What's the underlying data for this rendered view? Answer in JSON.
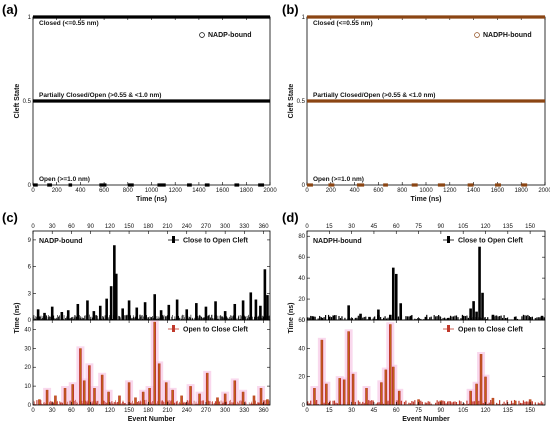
{
  "chart_data": [
    {
      "panel": "(a)",
      "type": "scatter",
      "legend": "NADP-bound",
      "xlabel": "Time (ns)",
      "ylabel": "Cleft  State",
      "xlim": [
        0,
        2000
      ],
      "ylim": [
        0,
        1
      ],
      "xticks": [
        "0",
        "200",
        "400",
        "600",
        "800",
        "1000",
        "1200",
        "1400",
        "1600",
        "1800",
        "2000"
      ],
      "yticks": [
        "0",
        "0.5",
        "1"
      ],
      "annotations": [
        "Closed (<=0.55 nm)",
        "Partially Closed/Open (>0.55 & <1.0 nm)",
        "Open (>=1.0 nm)"
      ],
      "states": [
        {
          "y": 1,
          "segments": [
            [
              0,
              2000
            ]
          ]
        },
        {
          "y": 0.5,
          "segments": [
            [
              0,
              2000
            ]
          ]
        },
        {
          "y": 0,
          "segments": [
            [
              0,
              40
            ],
            [
              120,
              160
            ],
            [
              300,
              330
            ],
            [
              560,
              620
            ],
            [
              800,
              850
            ],
            [
              1050,
              1120
            ],
            [
              1300,
              1340
            ],
            [
              1450,
              1490
            ],
            [
              1700,
              1740
            ],
            [
              1900,
              1950
            ]
          ]
        }
      ],
      "color": "#000000"
    },
    {
      "panel": "(b)",
      "type": "scatter",
      "legend": "NADPH-bound",
      "xlabel": "Time (ns)",
      "ylabel": "Cleft  State",
      "xlim": [
        0,
        2000
      ],
      "ylim": [
        0,
        1
      ],
      "xticks": [
        "0",
        "200",
        "400",
        "600",
        "800",
        "1000",
        "1200",
        "1400",
        "1600",
        "1800",
        "2000"
      ],
      "yticks": [
        "0",
        "0.5",
        "1"
      ],
      "annotations": [
        "Closed (<=0.55 nm)",
        "Partially Closed/Open (>0.55 & <1.0 nm)",
        "Open (>=1.0 nm)"
      ],
      "states": [
        {
          "y": 1,
          "segments": [
            [
              0,
              2000
            ]
          ]
        },
        {
          "y": 0.5,
          "segments": [
            [
              0,
              2000
            ]
          ]
        },
        {
          "y": 0,
          "segments": [
            [
              0,
              50
            ],
            [
              180,
              230
            ],
            [
              420,
              480
            ],
            [
              640,
              680
            ],
            [
              880,
              930
            ],
            [
              1100,
              1160
            ],
            [
              1350,
              1400
            ],
            [
              1580,
              1630
            ],
            [
              1800,
              1850
            ]
          ]
        }
      ],
      "color": "#8B4513"
    },
    {
      "panel": "(c)",
      "type": "bar",
      "header": "NADP-bound",
      "xlabel": "Event Number",
      "ylabel": "Time (ns)",
      "xlim": [
        0,
        370
      ],
      "xticks": [
        "0",
        "30",
        "60",
        "90",
        "120",
        "150",
        "180",
        "210",
        "240",
        "270",
        "300",
        "330",
        "360"
      ],
      "top": {
        "legend": "Close to Open Cleft",
        "ylim": [
          0,
          10
        ],
        "yticks": [
          "0",
          "3",
          "6",
          "9"
        ],
        "color": "#000000",
        "peaks": [
          [
            8,
            1.2
          ],
          [
            18,
            0.8
          ],
          [
            30,
            1.5
          ],
          [
            45,
            0.9
          ],
          [
            55,
            1.1
          ],
          [
            70,
            1.8
          ],
          [
            85,
            2.2
          ],
          [
            95,
            1.0
          ],
          [
            105,
            1.6
          ],
          [
            115,
            2.4
          ],
          [
            122,
            3.8
          ],
          [
            127,
            8.4
          ],
          [
            130,
            5.2
          ],
          [
            140,
            1.3
          ],
          [
            150,
            2.2
          ],
          [
            162,
            1.4
          ],
          [
            175,
            2.0
          ],
          [
            190,
            2.9
          ],
          [
            200,
            1.1
          ],
          [
            212,
            1.7
          ],
          [
            225,
            2.3
          ],
          [
            240,
            1.2
          ],
          [
            255,
            1.9
          ],
          [
            270,
            1.5
          ],
          [
            285,
            2.1
          ],
          [
            300,
            1.0
          ],
          [
            315,
            1.8
          ],
          [
            328,
            2.2
          ],
          [
            340,
            3.1
          ],
          [
            348,
            2.3
          ],
          [
            355,
            1.6
          ],
          [
            362,
            5.7
          ],
          [
            366,
            2.8
          ]
        ]
      },
      "bottom": {
        "legend": "Open to Close Cleft",
        "ylim": [
          0,
          45
        ],
        "yticks": [
          "0",
          "10",
          "20",
          "30",
          "40"
        ],
        "color": "#C0392B",
        "peaks": [
          [
            10,
            3
          ],
          [
            22,
            8
          ],
          [
            35,
            5
          ],
          [
            50,
            9
          ],
          [
            62,
            11
          ],
          [
            74,
            30
          ],
          [
            80,
            13
          ],
          [
            88,
            21
          ],
          [
            96,
            9
          ],
          [
            108,
            16
          ],
          [
            118,
            7
          ],
          [
            135,
            5
          ],
          [
            150,
            12
          ],
          [
            160,
            4
          ],
          [
            172,
            7
          ],
          [
            182,
            9
          ],
          [
            190,
            44
          ],
          [
            197,
            22
          ],
          [
            208,
            12
          ],
          [
            218,
            8
          ],
          [
            232,
            5
          ],
          [
            246,
            10
          ],
          [
            260,
            6
          ],
          [
            272,
            17
          ],
          [
            288,
            4
          ],
          [
            300,
            6
          ],
          [
            315,
            13
          ],
          [
            328,
            7
          ],
          [
            345,
            5
          ],
          [
            356,
            9
          ],
          [
            366,
            3
          ]
        ]
      }
    },
    {
      "panel": "(d)",
      "type": "bar",
      "header": "NADPH-bound",
      "xlabel": "Event Number",
      "ylabel": "Time (ns)",
      "xlim": [
        0,
        160
      ],
      "xticks": [
        "0",
        "15",
        "30",
        "45",
        "60",
        "75",
        "90",
        "105",
        "120",
        "135",
        "150"
      ],
      "top": {
        "legend": "Close to Open Cleft",
        "ylim": [
          0,
          85
        ],
        "yticks": [
          "0",
          "20",
          "40",
          "60",
          "80"
        ],
        "color": "#000000",
        "peaks": [
          [
            4,
            3
          ],
          [
            10,
            2
          ],
          [
            18,
            4
          ],
          [
            28,
            14
          ],
          [
            36,
            6
          ],
          [
            42,
            3
          ],
          [
            48,
            10
          ],
          [
            56,
            5
          ],
          [
            58,
            50
          ],
          [
            60,
            44
          ],
          [
            63,
            16
          ],
          [
            70,
            4
          ],
          [
            80,
            3
          ],
          [
            95,
            2
          ],
          [
            105,
            4
          ],
          [
            110,
            11
          ],
          [
            112,
            18
          ],
          [
            114,
            8
          ],
          [
            116,
            70
          ],
          [
            118,
            26
          ],
          [
            125,
            5
          ],
          [
            140,
            3
          ],
          [
            150,
            2
          ],
          [
            158,
            4
          ]
        ]
      },
      "bottom": {
        "legend": "Open to Close Cleft",
        "ylim": [
          0,
          60
        ],
        "yticks": [
          "0",
          "20",
          "40",
          "60"
        ],
        "color": "#C0392B",
        "peaks": [
          [
            5,
            12
          ],
          [
            10,
            46
          ],
          [
            13,
            15
          ],
          [
            22,
            19
          ],
          [
            25,
            18
          ],
          [
            28,
            52
          ],
          [
            31,
            22
          ],
          [
            40,
            12
          ],
          [
            50,
            16
          ],
          [
            53,
            25
          ],
          [
            56,
            57
          ],
          [
            58,
            27
          ],
          [
            62,
            10
          ],
          [
            75,
            4
          ],
          [
            90,
            3
          ],
          [
            110,
            10
          ],
          [
            114,
            15
          ],
          [
            117,
            36
          ],
          [
            120,
            20
          ],
          [
            125,
            5
          ],
          [
            140,
            3
          ],
          [
            150,
            4
          ]
        ]
      }
    }
  ]
}
